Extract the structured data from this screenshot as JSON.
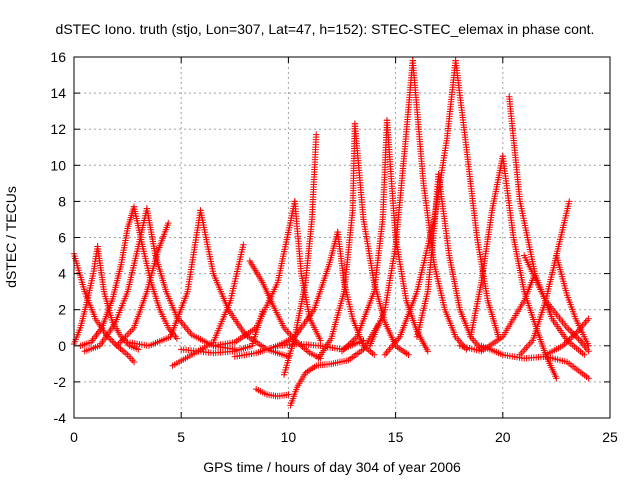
{
  "chart_data": {
    "type": "scatter",
    "title": "dSTEC Iono. truth (stjo, Lon=307, Lat=47, h=152): STEC-STEC_elemax in phase cont.",
    "xlabel": "GPS time / hours of day 304 of year 2006",
    "ylabel": "dSTEC  / TECUs",
    "xlim": [
      0,
      25
    ],
    "ylim": [
      -4,
      16
    ],
    "xticks": [
      0,
      5,
      10,
      15,
      20,
      25
    ],
    "yticks": [
      -4,
      -2,
      0,
      2,
      4,
      6,
      8,
      10,
      12,
      14,
      16
    ],
    "grid": true,
    "legend": "none",
    "marker": "+",
    "color": "#ff0000",
    "series": [
      {
        "x": [
          0.0,
          0.5,
          1.0,
          1.5,
          2.0,
          2.5,
          2.8
        ],
        "y": [
          5.1,
          3.0,
          1.5,
          0.6,
          0.0,
          -0.5,
          -0.9
        ]
      },
      {
        "x": [
          0.0,
          0.3,
          0.6,
          0.9,
          1.1
        ],
        "y": [
          0.1,
          1.0,
          2.4,
          4.0,
          5.5
        ]
      },
      {
        "x": [
          1.1,
          1.4,
          1.8,
          2.2,
          2.6,
          3.0
        ],
        "y": [
          5.5,
          3.0,
          1.3,
          0.5,
          0.0,
          -0.2
        ]
      },
      {
        "x": [
          0.3,
          0.8,
          1.3,
          1.8,
          2.2,
          2.5,
          2.8
        ],
        "y": [
          0.0,
          0.2,
          1.0,
          2.6,
          4.5,
          6.5,
          7.7
        ]
      },
      {
        "x": [
          2.8,
          3.2,
          3.6,
          4.0,
          4.4,
          4.8
        ],
        "y": [
          7.7,
          5.5,
          3.5,
          2.0,
          1.0,
          0.4
        ]
      },
      {
        "x": [
          0.5,
          1.2,
          1.9,
          2.5,
          3.0,
          3.4
        ],
        "y": [
          -0.3,
          0.0,
          1.2,
          3.0,
          5.5,
          7.6
        ]
      },
      {
        "x": [
          3.4,
          3.8,
          4.3,
          4.8,
          5.5,
          6.5,
          7.5
        ],
        "y": [
          7.6,
          5.0,
          3.0,
          1.6,
          0.6,
          0.0,
          -0.2
        ]
      },
      {
        "x": [
          2.0,
          2.8,
          3.4,
          3.9,
          4.4
        ],
        "y": [
          0.0,
          1.0,
          3.0,
          5.2,
          6.8
        ]
      },
      {
        "x": [
          2.5,
          3.5,
          4.5,
          5.3,
          5.9
        ],
        "y": [
          0.2,
          0.0,
          0.5,
          3.0,
          7.5
        ]
      },
      {
        "x": [
          5.9,
          6.5,
          7.2,
          8.0,
          9.0,
          10.0
        ],
        "y": [
          7.5,
          4.0,
          2.0,
          0.6,
          -0.2,
          -0.6
        ]
      },
      {
        "x": [
          4.6,
          5.5,
          6.5,
          7.3,
          7.9
        ],
        "y": [
          -1.1,
          -0.5,
          0.2,
          2.5,
          5.6
        ]
      },
      {
        "x": [
          5.0,
          6.5,
          7.5,
          8.3,
          8.8
        ],
        "y": [
          -0.2,
          -0.4,
          -0.3,
          0.0,
          1.9
        ]
      },
      {
        "x": [
          8.2,
          8.8,
          9.3,
          9.8,
          10.4,
          11.0,
          11.5
        ],
        "y": [
          4.7,
          3.5,
          2.2,
          1.0,
          0.2,
          -0.4,
          -0.7
        ]
      },
      {
        "x": [
          8.5,
          9.0,
          9.5,
          10.0
        ],
        "y": [
          -2.4,
          -2.7,
          -2.8,
          -2.7
        ]
      },
      {
        "x": [
          10.1,
          10.4,
          10.8,
          11.3,
          12.0,
          12.8,
          13.5,
          14.2
        ],
        "y": [
          -3.3,
          -2.3,
          -1.5,
          -1.1,
          -1.0,
          -0.8,
          -0.2,
          1.2
        ]
      },
      {
        "x": [
          9.8,
          10.3,
          10.8,
          11.1,
          11.3
        ],
        "y": [
          -1.6,
          0.5,
          3.5,
          7.0,
          11.7
        ]
      },
      {
        "x": [
          9.5,
          10.3,
          11.2,
          11.9,
          12.3
        ],
        "y": [
          0.0,
          0.5,
          2.0,
          4.5,
          6.3
        ]
      },
      {
        "x": [
          12.3,
          12.6,
          13.0,
          13.5,
          14.0
        ],
        "y": [
          6.3,
          3.5,
          1.5,
          0.0,
          -0.5
        ]
      },
      {
        "x": [
          11.4,
          12.0,
          12.6,
          13.0,
          13.1
        ],
        "y": [
          -0.7,
          0.4,
          3.0,
          7.5,
          12.3
        ]
      },
      {
        "x": [
          13.1,
          13.5,
          14.0,
          14.5,
          15.0,
          15.6
        ],
        "y": [
          12.3,
          7.0,
          3.5,
          1.3,
          0.0,
          -0.5
        ]
      },
      {
        "x": [
          12.5,
          13.2,
          14.0,
          14.4,
          14.6
        ],
        "y": [
          -0.3,
          0.5,
          3.0,
          7.0,
          12.5
        ]
      },
      {
        "x": [
          14.6,
          15.0,
          15.5,
          16.0,
          16.5
        ],
        "y": [
          12.5,
          6.0,
          2.5,
          0.8,
          -0.3
        ]
      },
      {
        "x": [
          13.8,
          14.5,
          15.0,
          15.4,
          15.8
        ],
        "y": [
          0.0,
          2.0,
          5.5,
          10.5,
          15.8
        ]
      },
      {
        "x": [
          15.8,
          16.3,
          16.8,
          17.3,
          17.8,
          18.3
        ],
        "y": [
          15.8,
          9.0,
          4.5,
          2.0,
          0.5,
          -0.2
        ]
      },
      {
        "x": [
          14.5,
          15.2,
          16.0,
          16.8,
          17.4,
          17.8
        ],
        "y": [
          -0.5,
          0.5,
          3.0,
          7.0,
          11.5,
          15.8
        ]
      },
      {
        "x": [
          17.8,
          18.3,
          18.8,
          19.3,
          19.8
        ],
        "y": [
          15.8,
          11.0,
          6.0,
          2.5,
          0.5
        ]
      },
      {
        "x": [
          16.0,
          16.5,
          16.8,
          17.0
        ],
        "y": [
          0.5,
          3.0,
          6.5,
          9.5
        ]
      },
      {
        "x": [
          17.0,
          17.5,
          18.0,
          18.5,
          19.0
        ],
        "y": [
          9.5,
          5.0,
          2.0,
          0.5,
          -0.2
        ]
      },
      {
        "x": [
          18.5,
          19.0,
          19.5,
          20.0
        ],
        "y": [
          0.5,
          3.5,
          7.5,
          10.5
        ]
      },
      {
        "x": [
          20.0,
          20.5,
          21.0,
          21.5,
          22.0,
          22.5
        ],
        "y": [
          10.5,
          6.0,
          3.0,
          1.2,
          -0.5,
          -1.8
        ]
      },
      {
        "x": [
          20.3,
          20.8,
          21.5,
          22.3,
          23.0,
          23.8
        ],
        "y": [
          13.8,
          8.0,
          4.0,
          1.5,
          0.3,
          -0.5
        ]
      },
      {
        "x": [
          20.8,
          21.4,
          22.0,
          22.6,
          23.1
        ],
        "y": [
          -0.5,
          0.3,
          2.5,
          5.5,
          8.0
        ]
      },
      {
        "x": [
          22.5,
          23.0,
          23.4,
          23.8,
          24.0
        ],
        "y": [
          5.0,
          2.8,
          1.5,
          0.5,
          0.0
        ]
      },
      {
        "x": [
          22.0,
          22.8,
          23.5,
          24.0
        ],
        "y": [
          -0.5,
          0.0,
          0.8,
          1.5
        ]
      },
      {
        "x": [
          21.0,
          22.0,
          23.0,
          23.6,
          24.0
        ],
        "y": [
          5.0,
          2.5,
          1.0,
          0.3,
          -0.3
        ]
      },
      {
        "x": [
          19.0,
          20.0,
          21.0,
          22.0,
          23.0,
          24.0
        ],
        "y": [
          0.0,
          -0.5,
          -0.7,
          -0.6,
          -0.9,
          -1.8
        ]
      },
      {
        "x": [
          18.0,
          19.0,
          20.0,
          21.0,
          21.5
        ],
        "y": [
          0.0,
          -0.3,
          0.5,
          2.5,
          4.0
        ]
      },
      {
        "x": [
          6.5,
          7.5,
          8.5,
          9.5,
          10.3
        ],
        "y": [
          0.0,
          0.2,
          1.0,
          3.5,
          8.0
        ]
      },
      {
        "x": [
          10.3,
          10.6,
          11.0,
          11.5
        ],
        "y": [
          8.0,
          4.0,
          1.5,
          0.3
        ]
      },
      {
        "x": [
          7.5,
          8.5,
          9.5,
          10.5,
          11.5,
          12.5,
          13.5
        ],
        "y": [
          -0.6,
          -0.4,
          0.0,
          0.1,
          0.0,
          -0.2,
          0.3
        ]
      }
    ]
  }
}
